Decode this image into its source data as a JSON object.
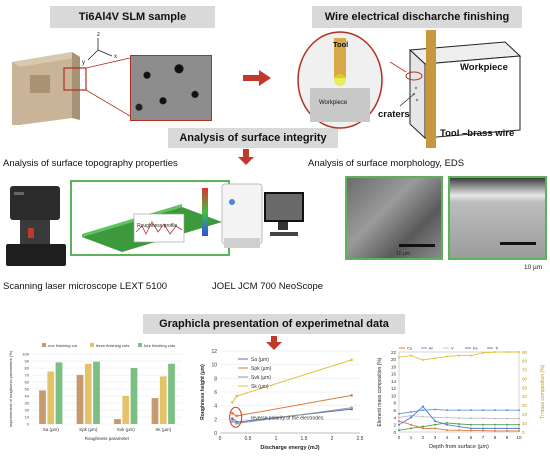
{
  "banners": {
    "sample": "Ti6Al4V SLM sample",
    "wedm": "Wire electrical discharche finishing",
    "analysis": "Analysis of surface integrity",
    "graphical": "Graphicla presentation of experimetnal data"
  },
  "labels": {
    "topography": "Analysis of surface topography properties",
    "morphology": "Analysis of surface morphology,  EDS",
    "laser_microscope": "Scanning laser microscope LEXT 5100",
    "sem": "JOEL JCM 700 NeoScope",
    "tool_wire": "Tool –brass wire",
    "workpiece": "Workpiece",
    "craters": "craters",
    "tool_small": "Tool",
    "workpiece_small": "Workpiece",
    "axis_z": "z",
    "axis_x": "x",
    "axis_y": "y",
    "roughness_profile": "Roughness profile",
    "scale_10um": "10 µm",
    "scale_10um_b": "10 µm"
  },
  "colors": {
    "banner": "#d9d9d9",
    "arrow": "#c0392b",
    "green": "#5bb25b"
  },
  "chart_data": [
    {
      "type": "bar",
      "categories": [
        "Sa (µm)",
        "Spk (µm)",
        "Svk (µm)",
        "Sk (µm)"
      ],
      "series": [
        {
          "name": "one finishing cut",
          "color": "#c59a6e",
          "values": [
            48,
            70,
            7,
            37
          ]
        },
        {
          "name": "three finishing cuts",
          "color": "#e3c36a",
          "values": [
            75,
            86,
            40,
            68
          ]
        },
        {
          "name": "four finishing cuts",
          "color": "#7bbf84",
          "values": [
            88,
            89,
            80,
            86
          ]
        }
      ],
      "ylabel": "Improvement of roughness parameters (%)",
      "xlabel": "Roughness parameter",
      "ylim": [
        0,
        100
      ],
      "yticks": [
        0,
        10,
        20,
        30,
        40,
        50,
        60,
        70,
        80,
        90,
        100
      ]
    },
    {
      "type": "line",
      "x": [
        0.22,
        0.3,
        2.35
      ],
      "series": [
        {
          "name": "Sa (µm)",
          "color": "#4a6fd1",
          "values": [
            2.1,
            1.6,
            3.5
          ]
        },
        {
          "name": "Spk (µm)",
          "color": "#e07b39",
          "values": [
            2.9,
            2.5,
            5.5
          ]
        },
        {
          "name": "Svk (µm)",
          "color": "#9a9a9a",
          "values": [
            1.7,
            1.4,
            3.7
          ]
        },
        {
          "name": "Sk (µm)",
          "color": "#e0c23a",
          "values": [
            4.5,
            5.4,
            10.7
          ]
        }
      ],
      "xlabel": "Discharge energy (mJ)",
      "ylabel": "Roughness height (µm)",
      "xlim": [
        0,
        2.5
      ],
      "ylim": [
        0,
        12
      ],
      "xticks": [
        0,
        0.5,
        1,
        1.5,
        2,
        2.5
      ],
      "yticks": [
        0,
        2,
        4,
        6,
        8,
        10,
        12
      ],
      "annotation": "reverse polarity of the electrodes"
    },
    {
      "type": "line",
      "x": [
        0,
        1,
        2,
        3,
        4,
        5,
        6,
        7,
        8,
        9,
        10
      ],
      "series": [
        {
          "name": "Cu",
          "color": "#e07b39",
          "axis": "left",
          "values": [
            3,
            2,
            1,
            1,
            0.5,
            0.5,
            0.4,
            0.4,
            0.3,
            0.3,
            0.3
          ]
        },
        {
          "name": "Al",
          "color": "#6a9ad6",
          "axis": "left",
          "values": [
            5,
            5.5,
            6,
            6.2,
            6,
            6,
            6,
            6,
            6,
            6,
            6
          ]
        },
        {
          "name": "V",
          "color": "#c0c0c0",
          "axis": "left",
          "values": [
            4,
            4.5,
            4.2,
            4,
            4,
            3.8,
            3.8,
            3.8,
            3.7,
            3.7,
            3.7
          ]
        },
        {
          "name": "Fe",
          "color": "#4f7fcf",
          "axis": "left",
          "values": [
            2,
            4,
            7,
            3,
            2,
            1.5,
            1,
            1,
            1,
            1,
            1
          ]
        },
        {
          "name": "Ti",
          "color": "#5a9e50",
          "axis": "left",
          "values": [
            0.5,
            1,
            1.5,
            2,
            2.5,
            2.2,
            2,
            2,
            2,
            2,
            2
          ]
        },
        {
          "name": "Ti (mass comp.)",
          "color": "#e0c23a",
          "axis": "right",
          "values": [
            84,
            86,
            81,
            83,
            85,
            86,
            86,
            89,
            90,
            90,
            90
          ]
        }
      ],
      "xlabel": "Depth  from surface (µm)",
      "ylabel_left": "Element mass composition (%)",
      "ylabel_right": "Ti  mass composition (%)",
      "xlim": [
        0,
        10
      ],
      "ylim_left": [
        0,
        22
      ],
      "ylim_right": [
        0,
        90
      ],
      "xticks": [
        0,
        1,
        2,
        3,
        4,
        5,
        6,
        7,
        8,
        9,
        10
      ],
      "yticks_left": [
        0,
        2,
        4,
        6,
        8,
        10,
        12,
        14,
        16,
        18,
        20,
        22
      ],
      "yticks_right": [
        0,
        10,
        20,
        30,
        40,
        50,
        60,
        70,
        80,
        90
      ]
    }
  ]
}
